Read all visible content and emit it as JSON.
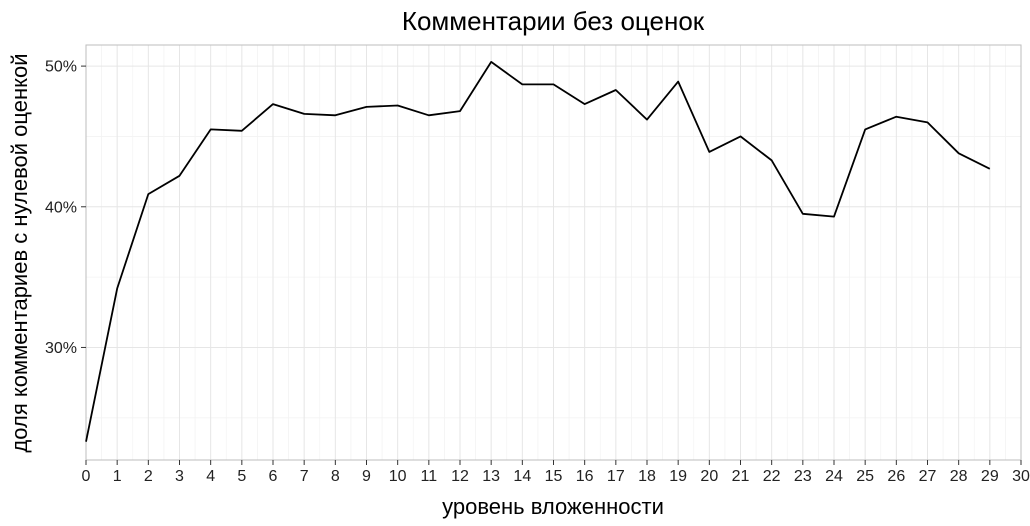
{
  "chart_data": {
    "type": "line",
    "title": "Комментарии без оценок",
    "xlabel": "уровень вложенности",
    "ylabel": "доля комментариев с нулевой оценкой",
    "xlim": [
      0,
      30
    ],
    "ylim": [
      22,
      51.5
    ],
    "x_ticks": [
      0,
      1,
      2,
      3,
      4,
      5,
      6,
      7,
      8,
      9,
      10,
      11,
      12,
      13,
      14,
      15,
      16,
      17,
      18,
      19,
      20,
      21,
      22,
      23,
      24,
      25,
      26,
      27,
      28,
      29,
      30
    ],
    "y_ticks": [
      30,
      40,
      50
    ],
    "y_tick_labels": [
      "30%",
      "40%",
      "50%"
    ],
    "grid": true,
    "legend": "none",
    "line_color": "#000000",
    "x": [
      0,
      1,
      2,
      3,
      4,
      5,
      6,
      7,
      8,
      9,
      10,
      11,
      12,
      13,
      14,
      15,
      16,
      17,
      18,
      19,
      20,
      21,
      22,
      23,
      24,
      25,
      26,
      27,
      28,
      29
    ],
    "y": [
      23.3,
      34.2,
      40.9,
      42.2,
      45.5,
      45.4,
      47.3,
      46.6,
      46.5,
      47.1,
      47.2,
      46.5,
      46.8,
      50.3,
      48.7,
      48.7,
      47.3,
      48.3,
      46.2,
      48.9,
      43.9,
      45.0,
      43.3,
      39.5,
      39.3,
      45.5,
      46.4,
      46.0,
      43.8,
      42.7
    ]
  }
}
